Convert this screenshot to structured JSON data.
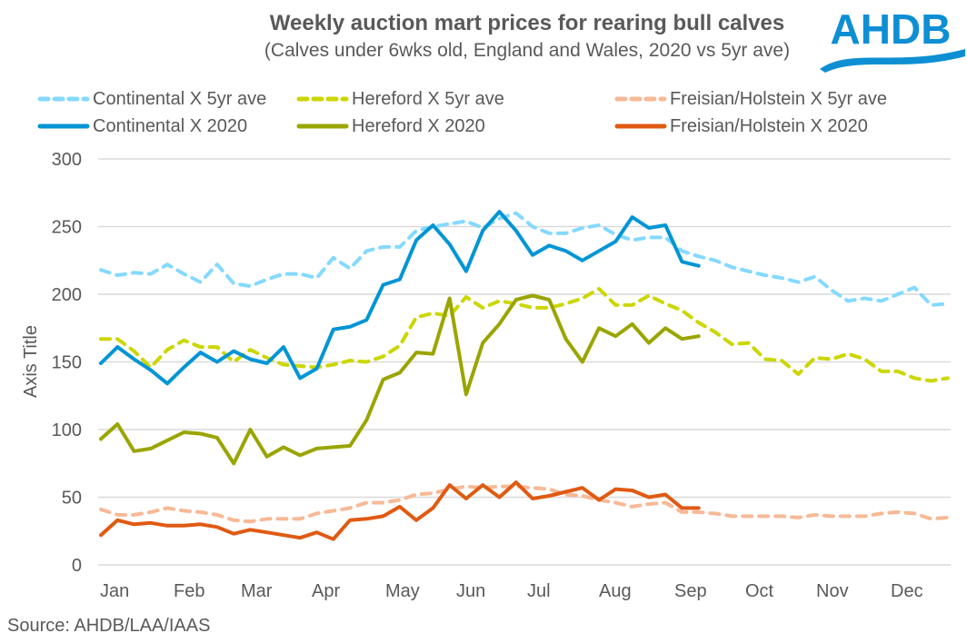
{
  "header": {
    "title": "Weekly auction mart prices for rearing bull calves",
    "subtitle": "(Calves under 6wks old, England and Wales, 2020 vs 5yr ave)",
    "logo_text": "AHDB"
  },
  "footer": {
    "source": "Source: AHDB/LAA/IAAS"
  },
  "colors": {
    "continental_5yr": "#85D9FF",
    "continental_2020": "#0095D5",
    "hereford_5yr": "#CCD600",
    "hereford_2020": "#9AA500",
    "freisian_5yr": "#F7B996",
    "freisian_2020": "#E05A12",
    "logo": "#0E8FD4"
  },
  "chart_data": {
    "type": "line",
    "title": "Weekly auction mart prices for rearing bull calves",
    "subtitle": "(Calves under 6wks old, England and Wales, 2020 vs 5yr ave)",
    "xlabel": "",
    "ylabel": "Axis Title",
    "ylim": [
      0,
      300
    ],
    "yticks": [
      0,
      50,
      100,
      150,
      200,
      250,
      300
    ],
    "x_week_range": [
      1,
      52
    ],
    "month_labels": [
      "Jan",
      "Feb",
      "Mar",
      "Apr",
      "May",
      "Jun",
      "Jul",
      "Aug",
      "Sep",
      "Oct",
      "Nov",
      "Dec"
    ],
    "grid": "horizontal",
    "legend_position": "top",
    "series": [
      {
        "name": "Continental X 5yr ave",
        "style": "dashed",
        "color_key": "continental_5yr",
        "values": [
          218,
          214,
          216,
          215,
          222,
          215,
          209,
          222,
          208,
          206,
          211,
          215,
          215,
          212,
          227,
          219,
          232,
          235,
          235,
          247,
          250,
          252,
          254,
          249,
          256,
          260,
          250,
          245,
          245,
          249,
          251,
          244,
          240,
          242,
          242,
          232,
          228,
          225,
          220,
          217,
          214,
          212,
          209,
          213,
          203,
          195,
          197,
          195,
          200,
          205,
          192,
          193
        ]
      },
      {
        "name": "Continental X 2020",
        "style": "solid",
        "color_key": "continental_2020",
        "values": [
          149,
          161,
          152,
          144,
          134,
          146,
          157,
          150,
          158,
          152,
          149,
          161,
          138,
          145,
          174,
          176,
          181,
          207,
          211,
          240,
          251,
          237,
          217,
          247,
          261,
          247,
          229,
          236,
          232,
          225,
          232,
          239,
          257,
          249,
          251,
          224,
          221
        ]
      },
      {
        "name": "Hereford X 5yr ave",
        "style": "dashed",
        "color_key": "hereford_5yr",
        "values": [
          167,
          167,
          158,
          146,
          159,
          166,
          161,
          161,
          150,
          159,
          153,
          148,
          147,
          146,
          148,
          151,
          150,
          154,
          162,
          183,
          186,
          184,
          198,
          190,
          195,
          193,
          190,
          190,
          193,
          197,
          204,
          192,
          192,
          199,
          193,
          188,
          179,
          172,
          163,
          164,
          152,
          151,
          141,
          153,
          152,
          156,
          152,
          143,
          143,
          138,
          136,
          138
        ]
      },
      {
        "name": "Hereford X 2020",
        "style": "solid",
        "color_key": "hereford_2020",
        "values": [
          93,
          104,
          84,
          86,
          92,
          98,
          97,
          94,
          75,
          100,
          80,
          87,
          81,
          86,
          87,
          88,
          107,
          137,
          142,
          157,
          156,
          197,
          126,
          164,
          178,
          196,
          199,
          196,
          167,
          150,
          175,
          169,
          178,
          164,
          175,
          167,
          169
        ]
      },
      {
        "name": "Freisian/Holstein X 5yr ave",
        "style": "dashed",
        "color_key": "freisian_5yr",
        "values": [
          41,
          37,
          37,
          39,
          42,
          40,
          39,
          37,
          33,
          32,
          34,
          34,
          34,
          38,
          40,
          42,
          46,
          46,
          48,
          52,
          53,
          56,
          58,
          57,
          58,
          58,
          57,
          56,
          52,
          51,
          48,
          46,
          43,
          45,
          46,
          39,
          39,
          38,
          36,
          36,
          36,
          36,
          35,
          37,
          36,
          36,
          36,
          38,
          39,
          38,
          34,
          35
        ]
      },
      {
        "name": "Freisian/Holstein X 2020",
        "style": "solid",
        "color_key": "freisian_2020",
        "values": [
          22,
          33,
          30,
          31,
          29,
          29,
          30,
          28,
          23,
          26,
          24,
          22,
          20,
          24,
          19,
          33,
          34,
          36,
          43,
          33,
          42,
          59,
          49,
          59,
          50,
          61,
          49,
          51,
          54,
          57,
          48,
          56,
          55,
          50,
          52,
          42,
          42
        ]
      }
    ]
  }
}
